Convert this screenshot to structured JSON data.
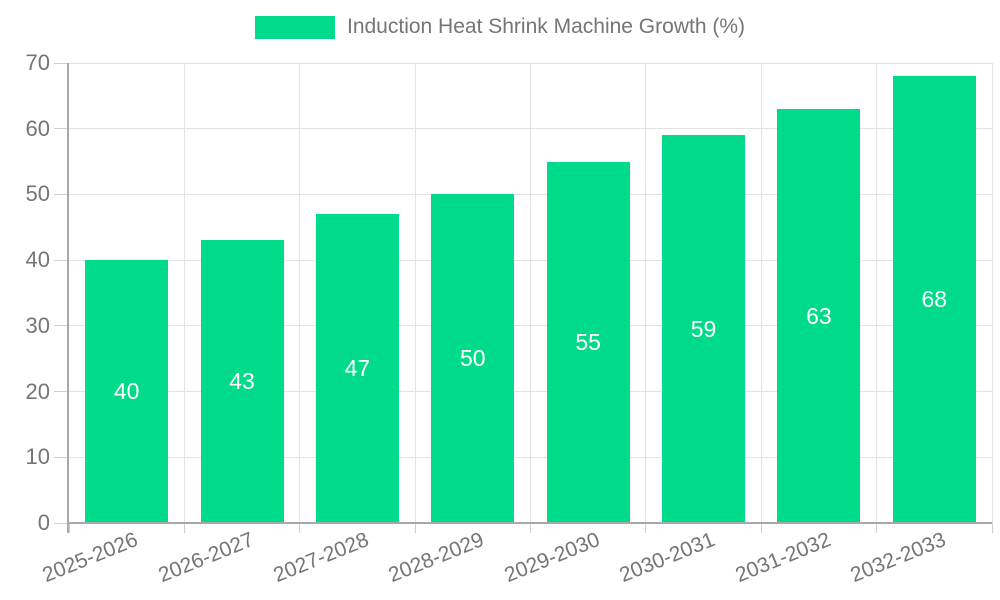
{
  "chart_data": {
    "type": "bar",
    "title": "",
    "legend": "Induction Heat Shrink Machine Growth (%)",
    "legend_position": "top",
    "categories": [
      "2025-2026",
      "2026-2027",
      "2027-2028",
      "2028-2029",
      "2029-2030",
      "2030-2031",
      "2031-2032",
      "2032-2033"
    ],
    "values": [
      40,
      43,
      47,
      50,
      55,
      59,
      63,
      68
    ],
    "xlabel": "",
    "ylabel": "",
    "ylim": [
      0,
      70
    ],
    "yticks": [
      0,
      10,
      20,
      30,
      40,
      50,
      60,
      70
    ],
    "grid": true,
    "colors": {
      "bar": "#00DB8B",
      "bar_value_text": "#ffffff",
      "grid": "#e3e3e3",
      "tick": "#cfcfcf",
      "axis": "#a8a8a8",
      "text": "#757575"
    }
  }
}
